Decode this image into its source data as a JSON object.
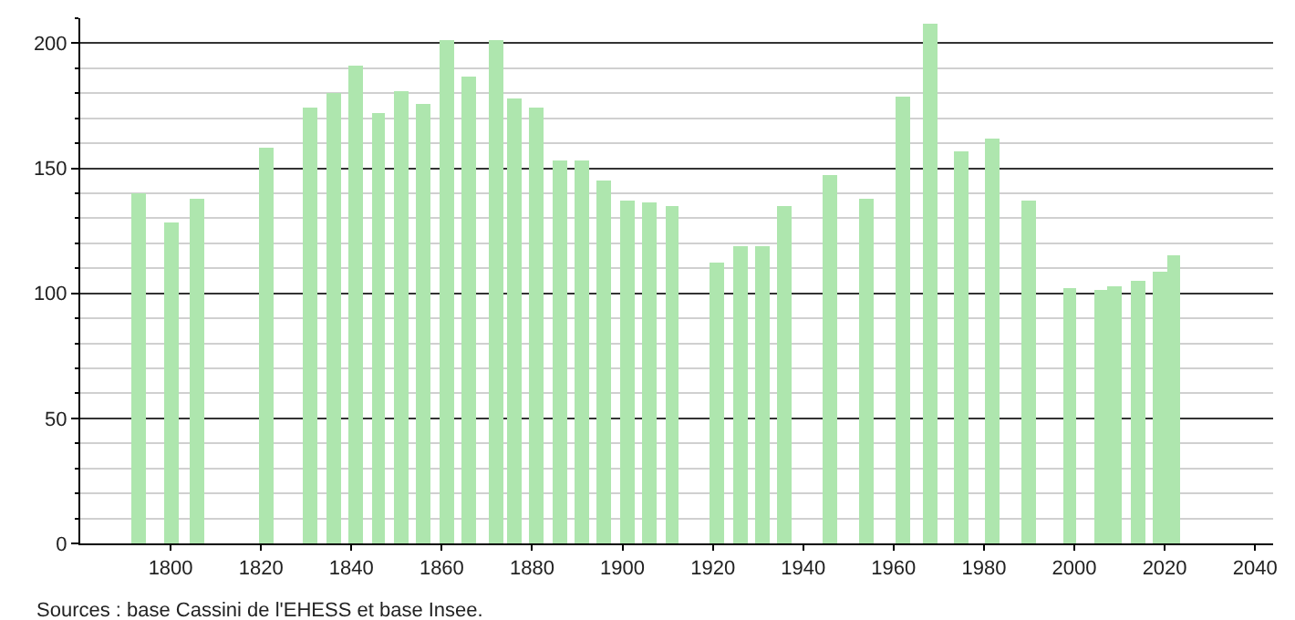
{
  "chart_data": {
    "type": "bar",
    "x": [
      1793,
      1800,
      1806,
      1821,
      1831,
      1836,
      1841,
      1846,
      1851,
      1856,
      1861,
      1866,
      1872,
      1876,
      1881,
      1886,
      1891,
      1896,
      1901,
      1906,
      1911,
      1921,
      1926,
      1931,
      1936,
      1946,
      1954,
      1962,
      1968,
      1975,
      1982,
      1990,
      1999,
      2006,
      2009,
      2014,
      2019,
      2022
    ],
    "values": [
      140,
      128,
      138,
      158,
      174,
      180,
      191,
      172,
      181,
      176,
      201,
      187,
      201,
      178,
      174,
      153,
      153,
      145,
      137,
      136,
      135,
      112,
      119,
      119,
      135,
      147,
      138,
      179,
      208,
      157,
      162,
      137,
      102,
      101,
      103,
      105,
      109,
      115
    ],
    "color": "#aee6ae",
    "xlim": [
      1780,
      2044
    ],
    "xticks": [
      1800,
      1820,
      1840,
      1860,
      1880,
      1900,
      1920,
      1940,
      1960,
      1980,
      2000,
      2020,
      2040
    ],
    "ylim": [
      0,
      210
    ],
    "yticks": [
      0,
      50,
      100,
      150,
      200
    ],
    "grid": "y",
    "annotations": [
      "Sources : base Cassini de l'EHESS et base Insee."
    ]
  }
}
